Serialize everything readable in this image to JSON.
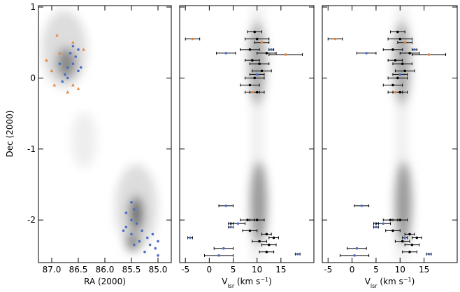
{
  "chart_data": [
    {
      "type": "scatter",
      "ylabel": "Dec (2000)",
      "xlabel": {
        "main": "RA (2000)"
      },
      "xlim": [
        87.25,
        84.75
      ],
      "ylim": [
        -2.6,
        1.02
      ],
      "xticks": [
        {
          "value": 87,
          "label": "87.0"
        },
        86.5,
        {
          "value": 86,
          "label": "86.0"
        },
        85.5,
        {
          "value": 85,
          "label": "85.0"
        }
      ],
      "yticks": [
        -2,
        -1,
        0,
        1
      ],
      "show_ytick_labels": true,
      "series": [
        {
          "color": "#4a6fc4",
          "marker": "circle",
          "x": [
            86.6,
            86.5,
            86.55,
            86.6,
            86.7,
            86.75,
            86.5,
            86.8,
            86.65,
            86.85,
            86.45,
            86.7,
            85.5,
            85.45,
            85.6,
            85.5,
            85.4,
            85.6,
            85.3,
            85.5,
            85.2,
            85.1,
            85.35,
            85.0,
            85.15,
            85.05,
            85.25,
            85.0,
            85.65,
            85.45
          ],
          "y": [
            0.45,
            0.4,
            0.3,
            0.2,
            0.15,
            0.05,
            0.1,
            -0.05,
            0.35,
            0.2,
            0.15,
            0.0,
            -1.75,
            -1.85,
            -1.9,
            -2.0,
            -2.05,
            -2.1,
            -2.15,
            -2.2,
            -2.25,
            -2.2,
            -2.3,
            -2.3,
            -2.35,
            -2.4,
            -2.45,
            -2.5,
            -2.15,
            -2.35
          ]
        },
        {
          "color": "#e8843c",
          "marker": "triangle",
          "x": [
            86.9,
            86.6,
            86.4,
            87.0,
            86.95,
            86.7,
            86.6,
            86.5,
            87.1,
            86.85
          ],
          "y": [
            0.6,
            0.5,
            0.4,
            0.1,
            -0.1,
            -0.2,
            -0.1,
            -0.15,
            0.25,
            0.35
          ]
        }
      ]
    },
    {
      "type": "scatter",
      "xlabel": {
        "main": "V",
        "sub": "lsr",
        "unit": " (km s",
        "sup": "−1",
        "end": ")"
      },
      "xlim": [
        -6.2,
        21.9
      ],
      "ylim": [
        -2.6,
        1.02
      ],
      "xticks": [
        -5,
        0,
        5,
        10,
        15
      ],
      "yticks": [
        -2,
        -1,
        0,
        1
      ],
      "show_ytick_labels": false,
      "series": [
        {
          "color": "#000000",
          "marker": "circle",
          "x": [
            9.5,
            10,
            8.5,
            12,
            9,
            10.5,
            11,
            9.5,
            8.5,
            10,
            8,
            10,
            8.5,
            12,
            13.5,
            10.5,
            12.5,
            12
          ],
          "y": [
            0.65,
            0.55,
            0.4,
            0.35,
            0.25,
            0.2,
            0.1,
            0,
            -0.1,
            -0.2,
            -2.0,
            -2.0,
            -2.15,
            -2.2,
            -2.25,
            -2.3,
            -2.35,
            -2.45
          ],
          "xerr": [
            1.5,
            2.5,
            2,
            2,
            1.5,
            2,
            2,
            2,
            2,
            1.5,
            1.5,
            1.5,
            1.5,
            1,
            1,
            1.5,
            1.5,
            1.5
          ]
        },
        {
          "color": "#4a6fc4",
          "marker": "circle",
          "x": [
            3.5,
            13,
            10,
            3.5,
            4.5,
            4.5,
            6,
            -4,
            3,
            18.5,
            2
          ],
          "y": [
            0.35,
            0.4,
            0.05,
            -1.8,
            -2.05,
            -2.1,
            -2.05,
            -2.25,
            -2.4,
            -2.48,
            -2.5
          ],
          "xerr": [
            2,
            0.5,
            1.5,
            1.5,
            0.5,
            0.5,
            1.5,
            0.5,
            2,
            0.5,
            3
          ]
        },
        {
          "color": "#e8843c",
          "marker": "circle",
          "x": [
            -3.5,
            11,
            16,
            9
          ],
          "y": [
            0.55,
            0.5,
            0.33,
            -0.2
          ],
          "xerr": [
            1.5,
            1.5,
            3.5,
            1.5
          ]
        }
      ]
    },
    {
      "type": "scatter",
      "xlabel": {
        "main": "V",
        "sub": "lsr",
        "unit": " (km s",
        "sup": "−1",
        "end": ")"
      },
      "xlim": [
        -6.2,
        21.9
      ],
      "ylim": [
        -2.6,
        1.02
      ],
      "xticks": [
        -5,
        0,
        5,
        10,
        15
      ],
      "yticks": [
        -2,
        -1,
        0,
        1
      ],
      "show_ytick_labels": false,
      "series": [
        {
          "color": "#000000",
          "marker": "circle",
          "x": [
            9.5,
            10,
            8.5,
            12,
            9,
            10.5,
            11,
            9.5,
            8.5,
            10,
            8,
            10,
            8.5,
            12,
            13.5,
            10.5,
            12.5,
            12
          ],
          "y": [
            0.65,
            0.55,
            0.4,
            0.35,
            0.25,
            0.2,
            0.1,
            0,
            -0.1,
            -0.2,
            -2.0,
            -2.0,
            -2.15,
            -2.2,
            -2.25,
            -2.3,
            -2.35,
            -2.45
          ],
          "xerr": [
            1.5,
            2.5,
            2,
            2,
            1.5,
            2,
            2,
            2,
            2,
            1.5,
            1.5,
            1.5,
            1.5,
            1,
            1,
            1.5,
            1.5,
            1.5
          ]
        },
        {
          "color": "#4a6fc4",
          "marker": "circle",
          "x": [
            3,
            13,
            10,
            2,
            5,
            5,
            6.5,
            11,
            1,
            16,
            0.5
          ],
          "y": [
            0.35,
            0.4,
            0.05,
            -1.8,
            -2.05,
            -2.1,
            -2.05,
            -2.25,
            -2.4,
            -2.48,
            -2.5
          ],
          "xerr": [
            2,
            0.5,
            1.5,
            1.5,
            0.5,
            0.5,
            1.5,
            0.5,
            2,
            0.5,
            3
          ]
        },
        {
          "color": "#e8843c",
          "marker": "circle",
          "x": [
            -3.5,
            11,
            16,
            9
          ],
          "y": [
            0.55,
            0.5,
            0.33,
            -0.2
          ],
          "xerr": [
            1.5,
            1.5,
            3.5,
            1.5
          ]
        }
      ]
    }
  ]
}
